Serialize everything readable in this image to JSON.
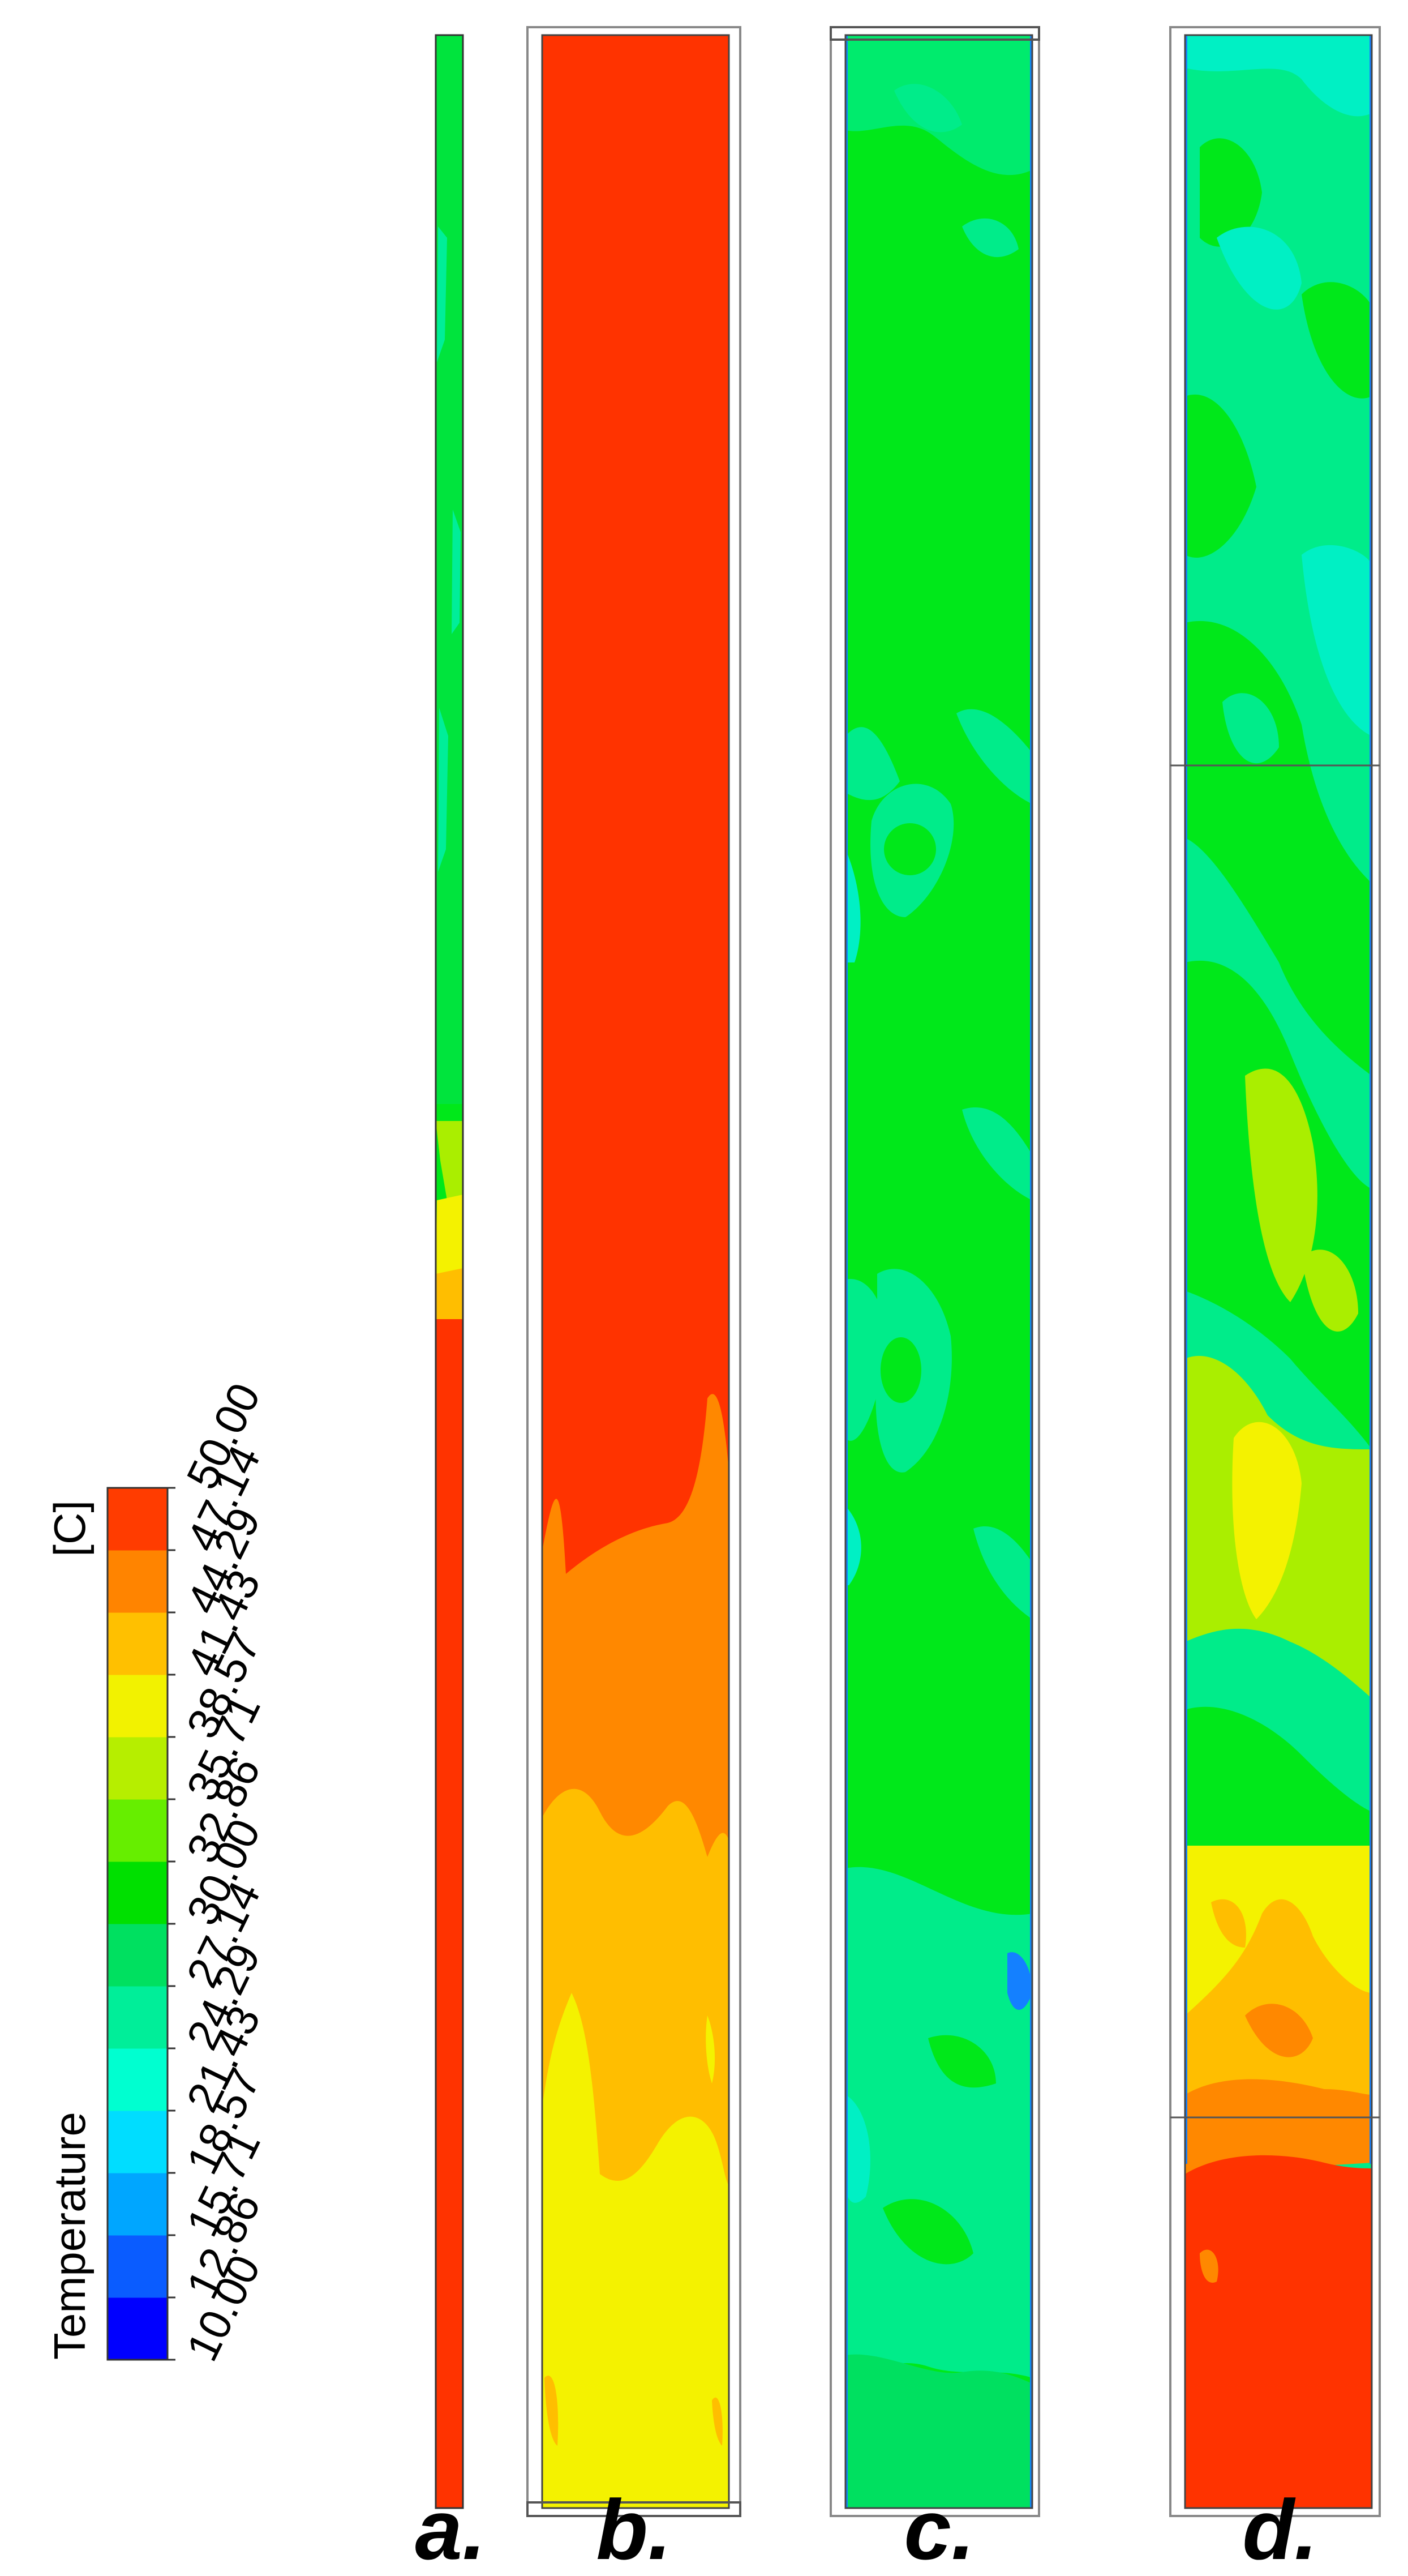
{
  "legend": {
    "title": "Temperature",
    "unit": "[C]",
    "ticks": [
      "10.00",
      "12.86",
      "15.71",
      "18.57",
      "21.43",
      "24.29",
      "27.14",
      "30.00",
      "32.86",
      "35.71",
      "38.57",
      "41.43",
      "44.29",
      "47.14",
      "50.00"
    ],
    "colors": [
      "#0000ff",
      "#0a5cff",
      "#00a6ff",
      "#00ddff",
      "#00ffd0",
      "#00ee99",
      "#00e060",
      "#00e000",
      "#66ee00",
      "#b6ee00",
      "#f2f200",
      "#ffc000",
      "#ff8400",
      "#ff3c00"
    ]
  },
  "panels": [
    {
      "label": "a."
    },
    {
      "label": "b."
    },
    {
      "label": "c."
    },
    {
      "label": "d."
    }
  ],
  "colors": {
    "red": "#ff3300",
    "orange": "#ff8800",
    "amber": "#ffbe00",
    "yellow": "#f4f200",
    "lime": "#aaee00",
    "green": "#00e81a",
    "mint": "#00ec8a",
    "aqua": "#00f0c4",
    "blue": "#1480ff",
    "frame": "#888888"
  }
}
